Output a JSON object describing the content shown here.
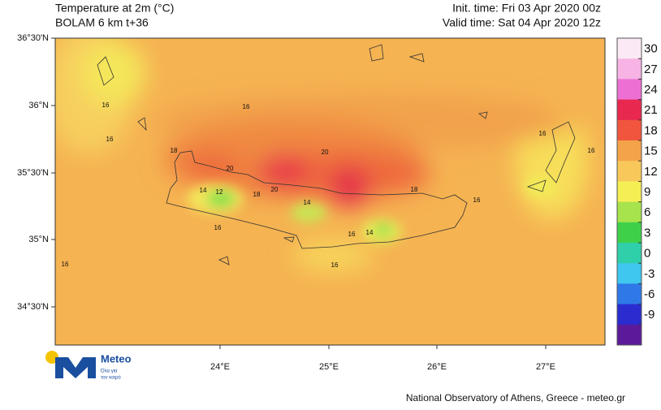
{
  "header": {
    "title": "Temperature at 2m (°C)",
    "subtitle": "BOLAM 6 km t+36",
    "init_time": "Init. time: Fri 03 Apr 2020 00z",
    "valid_time": "Valid time: Sat 04 Apr 2020 12z"
  },
  "map": {
    "lat_labels": [
      "36°30'N",
      "36°N",
      "35°30'N",
      "35°N",
      "34°30'N"
    ],
    "lon_labels": [
      "24°E",
      "25°E",
      "26°E",
      "27°E"
    ],
    "contour_labels": [
      16,
      16,
      16,
      18,
      20,
      20,
      16,
      16,
      14,
      12,
      18,
      20,
      14,
      18,
      16,
      16,
      16,
      14,
      16,
      16
    ]
  },
  "colorbar": {
    "ticks": [
      30,
      27,
      24,
      21,
      18,
      15,
      12,
      9,
      6,
      3,
      0,
      -3,
      -6,
      -9
    ],
    "colors": [
      "#fbe9f5",
      "#f6b3e4",
      "#ee6fd3",
      "#e8284f",
      "#f1553e",
      "#f5a34a",
      "#f8c85a",
      "#f5ef55",
      "#a7e34c",
      "#3fd04a",
      "#2fcfa9",
      "#3fc7ef",
      "#2f78e8",
      "#2a2ccf",
      "#5a1a9a"
    ]
  },
  "logo": {
    "name": "Meteo",
    "tagline": [
      "Όλα για",
      "τον καιρό"
    ]
  },
  "footer": "National Observatory of Athens, Greece - meteo.gr"
}
